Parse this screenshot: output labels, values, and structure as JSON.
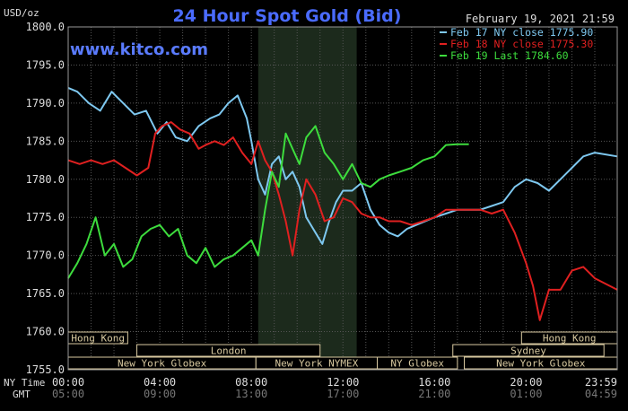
{
  "chart_data": {
    "type": "line",
    "title": "24 Hour Spot Gold (Bid)",
    "datetime": "February 19, 2021 21:59",
    "watermark": "www.kitco.com",
    "ylabel": "USD/oz",
    "ylim": [
      1755,
      1800
    ],
    "y_ticks": [
      "1800.0",
      "1795.0",
      "1790.0",
      "1785.0",
      "1780.0",
      "1775.0",
      "1770.0",
      "1765.0",
      "1760.0",
      "1755.0"
    ],
    "x_tick_labels_ny": [
      "00:00",
      "04:00",
      "08:00",
      "12:00",
      "16:00",
      "20:00",
      "23:59"
    ],
    "x_tick_labels_gmt": [
      "05:00",
      "09:00",
      "13:00",
      "17:00",
      "21:00",
      "01:00",
      "04:59"
    ],
    "x_row_labels": [
      "NY Time",
      "GMT"
    ],
    "x_ticks_hours": [
      0,
      4,
      8,
      12,
      16,
      20,
      23.98
    ],
    "xlim": [
      0,
      23.98
    ],
    "grid": true,
    "legend_position": "top-right",
    "shaded_region": [
      8.3,
      12.6
    ],
    "sessions": [
      {
        "name": "Hong Kong",
        "start": -0.2,
        "end": 2.6,
        "row": 0
      },
      {
        "name": "Hong Kong",
        "start": 19.8,
        "end": 23.98,
        "row": 0
      },
      {
        "name": "London",
        "start": 3.0,
        "end": 11.0,
        "row": 1
      },
      {
        "name": "Sydney",
        "start": 16.8,
        "end": 23.4,
        "row": 1
      },
      {
        "name": "New York Globex",
        "start": -0.2,
        "end": 8.2,
        "row": 2
      },
      {
        "name": "New York NYMEX",
        "start": 8.2,
        "end": 13.5,
        "row": 2
      },
      {
        "name": "NY Globex",
        "start": 13.5,
        "end": 17.0,
        "row": 2
      },
      {
        "name": "New York Globex",
        "start": 17.3,
        "end": 23.98,
        "row": 2
      }
    ],
    "series": [
      {
        "name": "Feb 17 NY close 1775.90",
        "color": "#7ec8f0",
        "x": [
          0,
          0.4,
          0.9,
          1.4,
          1.9,
          2.4,
          2.9,
          3.4,
          3.9,
          4.3,
          4.7,
          5.2,
          5.7,
          6.2,
          6.6,
          7.0,
          7.4,
          7.8,
          8.0,
          8.3,
          8.6,
          8.9,
          9.2,
          9.5,
          9.8,
          10.1,
          10.4,
          10.8,
          11.1,
          11.4,
          11.7,
          12.0,
          12.4,
          12.8,
          13.2,
          13.6,
          14.0,
          14.4,
          14.8,
          15.2,
          15.6,
          16.0,
          16.5,
          17.0,
          17.5,
          18.0,
          18.5,
          19.0,
          19.5,
          20.0,
          20.5,
          21.0,
          21.5,
          22.0,
          22.5,
          23.0,
          23.98
        ],
        "y": [
          1792,
          1791.5,
          1790,
          1789,
          1791.5,
          1790,
          1788.5,
          1789,
          1786,
          1787.5,
          1785.5,
          1785,
          1787,
          1788,
          1788.5,
          1790,
          1791,
          1788,
          1785,
          1780,
          1778,
          1782,
          1783,
          1780,
          1781,
          1779,
          1775,
          1773,
          1771.5,
          1774.5,
          1777,
          1778.5,
          1778.5,
          1779.5,
          1776,
          1774,
          1773,
          1772.5,
          1773.5,
          1774,
          1774.5,
          1775,
          1775.5,
          1776,
          1776,
          1776,
          1776.5,
          1777,
          1779,
          1780,
          1779.5,
          1778.5,
          1780,
          1781.5,
          1783,
          1783.5,
          1783
        ]
      },
      {
        "name": "Feb 18 NY close 1775.30",
        "color": "#e02020",
        "x": [
          0,
          0.5,
          1.0,
          1.5,
          2.0,
          2.5,
          3.0,
          3.5,
          3.8,
          4.1,
          4.5,
          4.9,
          5.3,
          5.7,
          6.0,
          6.4,
          6.8,
          7.2,
          7.6,
          8.0,
          8.3,
          8.6,
          8.9,
          9.2,
          9.5,
          9.8,
          10.1,
          10.4,
          10.8,
          11.2,
          11.6,
          12.0,
          12.4,
          12.8,
          13.2,
          13.6,
          14.0,
          14.5,
          15.0,
          15.5,
          16.0,
          16.5,
          17.0,
          17.5,
          18.0,
          18.5,
          19.0,
          19.5,
          20.0,
          20.3,
          20.6,
          21.0,
          21.5,
          22.0,
          22.5,
          23.0,
          23.98
        ],
        "y": [
          1782.5,
          1782,
          1782.5,
          1782,
          1782.5,
          1781.5,
          1780.5,
          1781.5,
          1786,
          1787,
          1787.5,
          1786.5,
          1786,
          1784,
          1784.5,
          1785,
          1784.5,
          1785.5,
          1783.5,
          1782,
          1785,
          1782.5,
          1781,
          1778,
          1774.5,
          1770,
          1776,
          1780,
          1778,
          1774.5,
          1775,
          1777.5,
          1777,
          1775.5,
          1775,
          1775,
          1774.5,
          1774.5,
          1774,
          1774.5,
          1775,
          1776,
          1776,
          1776,
          1776,
          1775.5,
          1776,
          1773,
          1769,
          1766,
          1761.5,
          1765.5,
          1765.5,
          1768,
          1768.5,
          1767,
          1765.5
        ]
      },
      {
        "name": "Feb 19 Last 1784.60",
        "color": "#3ddc3d",
        "x": [
          0,
          0.4,
          0.8,
          1.2,
          1.6,
          2.0,
          2.4,
          2.8,
          3.2,
          3.6,
          4.0,
          4.4,
          4.8,
          5.2,
          5.6,
          6.0,
          6.4,
          6.8,
          7.2,
          7.6,
          8.0,
          8.3,
          8.6,
          8.9,
          9.2,
          9.5,
          9.8,
          10.1,
          10.4,
          10.8,
          11.2,
          11.6,
          12.0,
          12.4,
          12.8,
          13.2,
          13.6,
          14.0,
          14.5,
          15.0,
          15.5,
          16.0,
          16.5,
          17.0,
          17.5
        ],
        "y": [
          1767,
          1769,
          1771.5,
          1775,
          1770,
          1771.5,
          1768.5,
          1769.5,
          1772.5,
          1773.5,
          1774,
          1772.5,
          1773.5,
          1770,
          1769,
          1771,
          1768.5,
          1769.5,
          1770,
          1771,
          1772,
          1770,
          1776,
          1781,
          1779,
          1786,
          1784,
          1782,
          1785.5,
          1787,
          1783.5,
          1782,
          1780,
          1782,
          1779.5,
          1779,
          1780,
          1780.5,
          1781,
          1781.5,
          1782.5,
          1783,
          1784.5,
          1784.6,
          1784.6
        ]
      }
    ]
  }
}
